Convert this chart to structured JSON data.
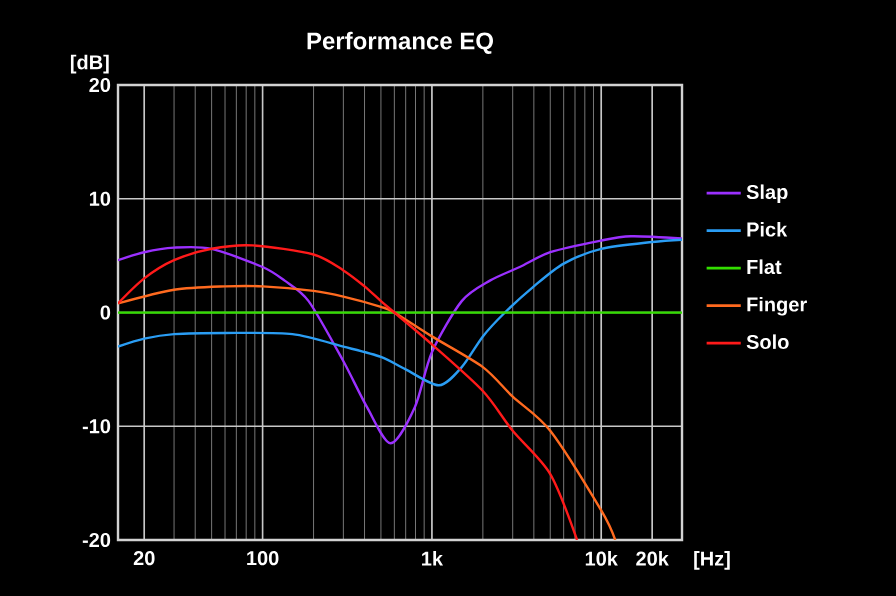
{
  "chart_data": {
    "type": "line",
    "title": "Performance EQ",
    "xlabel": "[Hz]",
    "ylabel": "[dB]",
    "log": "x",
    "xlim": [
      14,
      30000
    ],
    "ylim": [
      -20,
      20
    ],
    "xticks": [
      20,
      100,
      {
        "value": 1000,
        "label": "1k"
      },
      {
        "value": 10000,
        "label": "10k"
      },
      {
        "value": 20000,
        "label": "20k"
      }
    ],
    "yticks": [
      -20,
      -10,
      0,
      10,
      20
    ],
    "grid": true,
    "legend": "right",
    "marker": "none",
    "line_style": "solid",
    "series": [
      {
        "name": "Slap",
        "color": "#9b30ff",
        "x": [
          14,
          20,
          30,
          50,
          100,
          135,
          187,
          298,
          413,
          571,
          794,
          1000,
          1500,
          2200,
          3300,
          5000,
          9800,
          15000,
          30000
        ],
        "values": [
          4.6,
          5.3,
          5.7,
          5.6,
          4.0,
          2.8,
          1.0,
          -4.2,
          -8.3,
          -11.5,
          -8.3,
          -3.5,
          1.0,
          2.8,
          4.0,
          5.3,
          6.3,
          6.7,
          6.5
        ]
      },
      {
        "name": "Pick",
        "color": "#2a9df4",
        "x": [
          14,
          20,
          30,
          60,
          150,
          300,
          500,
          700,
          1100,
          1500,
          2000,
          2700,
          4000,
          6000,
          10000,
          20000,
          30000
        ],
        "values": [
          -3.0,
          -2.3,
          -1.9,
          -1.8,
          -1.9,
          -3.0,
          -3.9,
          -5.0,
          -6.4,
          -4.8,
          -2.1,
          0,
          2.3,
          4.3,
          5.6,
          6.2,
          6.4
        ]
      },
      {
        "name": "Flat",
        "color": "#33dd00",
        "x": [
          14,
          30000
        ],
        "values": [
          0,
          0
        ]
      },
      {
        "name": "Finger",
        "color": "#ff6a1f",
        "x": [
          14,
          30,
          60,
          100,
          200,
          300,
          500,
          600,
          1000,
          2000,
          3000,
          5000,
          10000,
          12100
        ],
        "values": [
          0.8,
          2.0,
          2.3,
          2.3,
          1.9,
          1.4,
          0.5,
          0,
          -2.1,
          -4.8,
          -7.4,
          -10.4,
          -17.4,
          -20
        ]
      },
      {
        "name": "Solo",
        "color": "#ff1a1a",
        "x": [
          14,
          20,
          30,
          50,
          87,
          200,
          300,
          400,
          500,
          600,
          1000,
          2000,
          3000,
          5000,
          7200
        ],
        "values": [
          0.8,
          3.0,
          4.6,
          5.6,
          5.9,
          5.1,
          3.7,
          2.3,
          1.0,
          0,
          -2.8,
          -6.9,
          -10.4,
          -14.2,
          -20
        ]
      }
    ]
  }
}
